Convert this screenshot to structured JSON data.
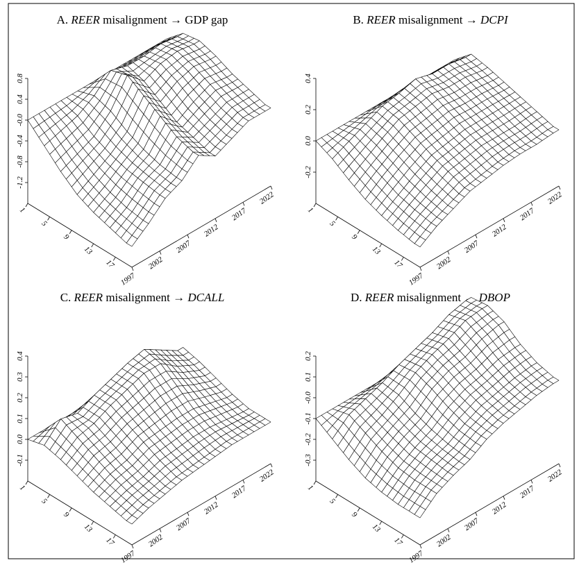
{
  "chart_data": [
    {
      "type": "surface",
      "title": {
        "prefix": "A.",
        "italic": "REER",
        "middle": "misalignment →",
        "suffix": "GDP gap",
        "suffix_italic": false
      },
      "horizon_ticks": [
        1,
        5,
        9,
        13,
        17
      ],
      "year_ticks": [
        1997,
        2002,
        2007,
        2012,
        2017,
        2022
      ],
      "z_ticks": [
        "-1.2",
        "-0.8",
        "-0.4",
        "-0.0",
        "0.4",
        "0.8"
      ],
      "z_tick_values": [
        -1.2,
        -0.8,
        -0.4,
        0.0,
        0.4,
        0.8
      ],
      "zlim": [
        -1.6,
        0.8
      ],
      "horizon_range": [
        1,
        20
      ],
      "year_range": [
        1997,
        2022
      ],
      "grid_horizons": [
        1,
        4,
        7,
        10,
        13,
        16,
        19
      ],
      "grid_years": [
        1997,
        2000,
        2003,
        2006,
        2009,
        2012,
        2015,
        2018,
        2021
      ],
      "z": [
        [
          0,
          -0.3,
          -0.6,
          -0.85,
          -1.0,
          -1.1,
          -1.2
        ],
        [
          0,
          -0.2,
          -0.45,
          -0.65,
          -0.8,
          -0.9,
          -0.95
        ],
        [
          0,
          -0.1,
          -0.3,
          -0.45,
          -0.55,
          -0.6,
          -0.65
        ],
        [
          0,
          0.1,
          0.0,
          -0.2,
          -0.35,
          -0.45,
          -0.5
        ],
        [
          0,
          0.4,
          0.5,
          0.3,
          0.1,
          -0.1,
          -0.2
        ],
        [
          0,
          0.3,
          0.2,
          0.0,
          -0.2,
          -0.3,
          -0.4
        ],
        [
          0,
          0.3,
          0.35,
          0.2,
          0.0,
          -0.15,
          -0.25
        ],
        [
          0,
          0.35,
          0.4,
          0.3,
          0.15,
          0.0,
          -0.1
        ],
        [
          0,
          0.3,
          0.35,
          0.25,
          0.1,
          0.0,
          -0.1
        ]
      ]
    },
    {
      "type": "surface",
      "title": {
        "prefix": "B.",
        "italic": "REER",
        "middle": "misalignment →",
        "suffix": "DCPI",
        "suffix_italic": true
      },
      "horizon_ticks": [
        1,
        5,
        9,
        13,
        17
      ],
      "year_ticks": [
        1997,
        2002,
        2007,
        2012,
        2017,
        2022
      ],
      "z_ticks": [
        "-0.2",
        "0.0",
        "0.2",
        "0.4"
      ],
      "z_tick_values": [
        -0.2,
        0.0,
        0.2,
        0.4
      ],
      "zlim": [
        -0.4,
        0.4
      ],
      "horizon_range": [
        1,
        20
      ],
      "year_range": [
        1997,
        2022
      ],
      "grid_horizons": [
        1,
        4,
        7,
        10,
        13,
        16,
        19
      ],
      "grid_years": [
        1997,
        2000,
        2003,
        2006,
        2009,
        2012,
        2015,
        2018,
        2021
      ],
      "z": [
        [
          0,
          -0.05,
          -0.12,
          -0.18,
          -0.22,
          -0.25,
          -0.27
        ],
        [
          0,
          0.0,
          -0.05,
          -0.1,
          -0.15,
          -0.18,
          -0.2
        ],
        [
          0,
          0.05,
          0.02,
          -0.03,
          -0.08,
          -0.12,
          -0.15
        ],
        [
          0,
          0.1,
          0.08,
          0.03,
          -0.02,
          -0.06,
          -0.1
        ],
        [
          0,
          0.12,
          0.1,
          0.05,
          0.0,
          -0.04,
          -0.08
        ],
        [
          0,
          0.15,
          0.12,
          0.07,
          0.02,
          -0.02,
          -0.06
        ],
        [
          0,
          0.12,
          0.1,
          0.06,
          0.02,
          -0.02,
          -0.05
        ],
        [
          0,
          0.12,
          0.1,
          0.06,
          0.02,
          -0.02,
          -0.05
        ],
        [
          0,
          0.1,
          0.08,
          0.05,
          0.02,
          -0.01,
          -0.04
        ]
      ]
    },
    {
      "type": "surface",
      "title": {
        "prefix": "C.",
        "italic": "REER",
        "middle": "misalignment →",
        "suffix": "DCALL",
        "suffix_italic": true
      },
      "horizon_ticks": [
        1,
        5,
        9,
        13,
        17
      ],
      "year_ticks": [
        1997,
        2002,
        2007,
        2012,
        2017,
        2022
      ],
      "z_ticks": [
        "-0.1",
        "0.0",
        "0.1",
        "0.2",
        "0.3",
        "0.4"
      ],
      "z_tick_values": [
        -0.1,
        0.0,
        0.1,
        0.2,
        0.3,
        0.4
      ],
      "zlim": [
        -0.2,
        0.4
      ],
      "horizon_range": [
        1,
        20
      ],
      "year_range": [
        1997,
        2022
      ],
      "grid_horizons": [
        1,
        4,
        7,
        10,
        13,
        16,
        19
      ],
      "grid_years": [
        1997,
        2000,
        2003,
        2006,
        2009,
        2012,
        2015,
        2018,
        2021
      ],
      "z": [
        [
          0,
          0.02,
          0.0,
          -0.03,
          -0.06,
          -0.08,
          -0.1
        ],
        [
          0,
          0.1,
          0.06,
          0.02,
          -0.02,
          -0.05,
          -0.07
        ],
        [
          0,
          0.08,
          0.08,
          0.04,
          0.0,
          -0.03,
          -0.05
        ],
        [
          0,
          0.12,
          0.12,
          0.08,
          0.04,
          0.0,
          -0.03
        ],
        [
          0,
          0.15,
          0.15,
          0.1,
          0.05,
          0.01,
          -0.02
        ],
        [
          0,
          0.18,
          0.18,
          0.12,
          0.06,
          0.02,
          -0.01
        ],
        [
          0,
          0.2,
          0.18,
          0.12,
          0.06,
          0.02,
          0.0
        ],
        [
          0,
          0.15,
          0.12,
          0.08,
          0.04,
          0.01,
          0.0
        ],
        [
          0,
          0.1,
          0.08,
          0.05,
          0.02,
          0.0,
          0.0
        ]
      ]
    },
    {
      "type": "surface",
      "title": {
        "prefix": "D.",
        "italic": "REER",
        "middle": "misalignment →",
        "suffix": "DBOP",
        "suffix_italic": true
      },
      "horizon_ticks": [
        1,
        5,
        9,
        13,
        17
      ],
      "year_ticks": [
        1997,
        2002,
        2007,
        2012,
        2017,
        2022
      ],
      "z_ticks": [
        "-0.3",
        "-0.2",
        "-0.1",
        "-0.0",
        "0.1",
        "0.2"
      ],
      "z_tick_values": [
        -0.3,
        -0.2,
        -0.1,
        0.0,
        0.1,
        0.2
      ],
      "zlim": [
        -0.4,
        0.2
      ],
      "horizon_range": [
        1,
        20
      ],
      "year_range": [
        1997,
        2022
      ],
      "grid_horizons": [
        1,
        4,
        7,
        10,
        13,
        16,
        19
      ],
      "grid_years": [
        1997,
        2000,
        2003,
        2006,
        2009,
        2012,
        2015,
        2018,
        2021
      ],
      "z": [
        [
          -0.1,
          -0.15,
          -0.2,
          -0.24,
          -0.26,
          -0.27,
          -0.27
        ],
        [
          -0.1,
          -0.08,
          -0.12,
          -0.16,
          -0.19,
          -0.2,
          -0.2
        ],
        [
          -0.1,
          -0.05,
          -0.08,
          -0.11,
          -0.14,
          -0.15,
          -0.16
        ],
        [
          -0.1,
          -0.02,
          -0.03,
          -0.07,
          -0.1,
          -0.12,
          -0.13
        ],
        [
          -0.1,
          0.02,
          0.03,
          0.0,
          -0.04,
          -0.07,
          -0.08
        ],
        [
          -0.1,
          0.05,
          0.07,
          0.04,
          0.0,
          -0.03,
          -0.05
        ],
        [
          -0.1,
          0.08,
          0.1,
          0.06,
          0.02,
          -0.01,
          -0.03
        ],
        [
          -0.1,
          0.12,
          0.14,
          0.1,
          0.05,
          0.01,
          -0.01
        ],
        [
          -0.1,
          0.14,
          0.15,
          0.12,
          0.06,
          0.02,
          0.0
        ]
      ]
    }
  ]
}
